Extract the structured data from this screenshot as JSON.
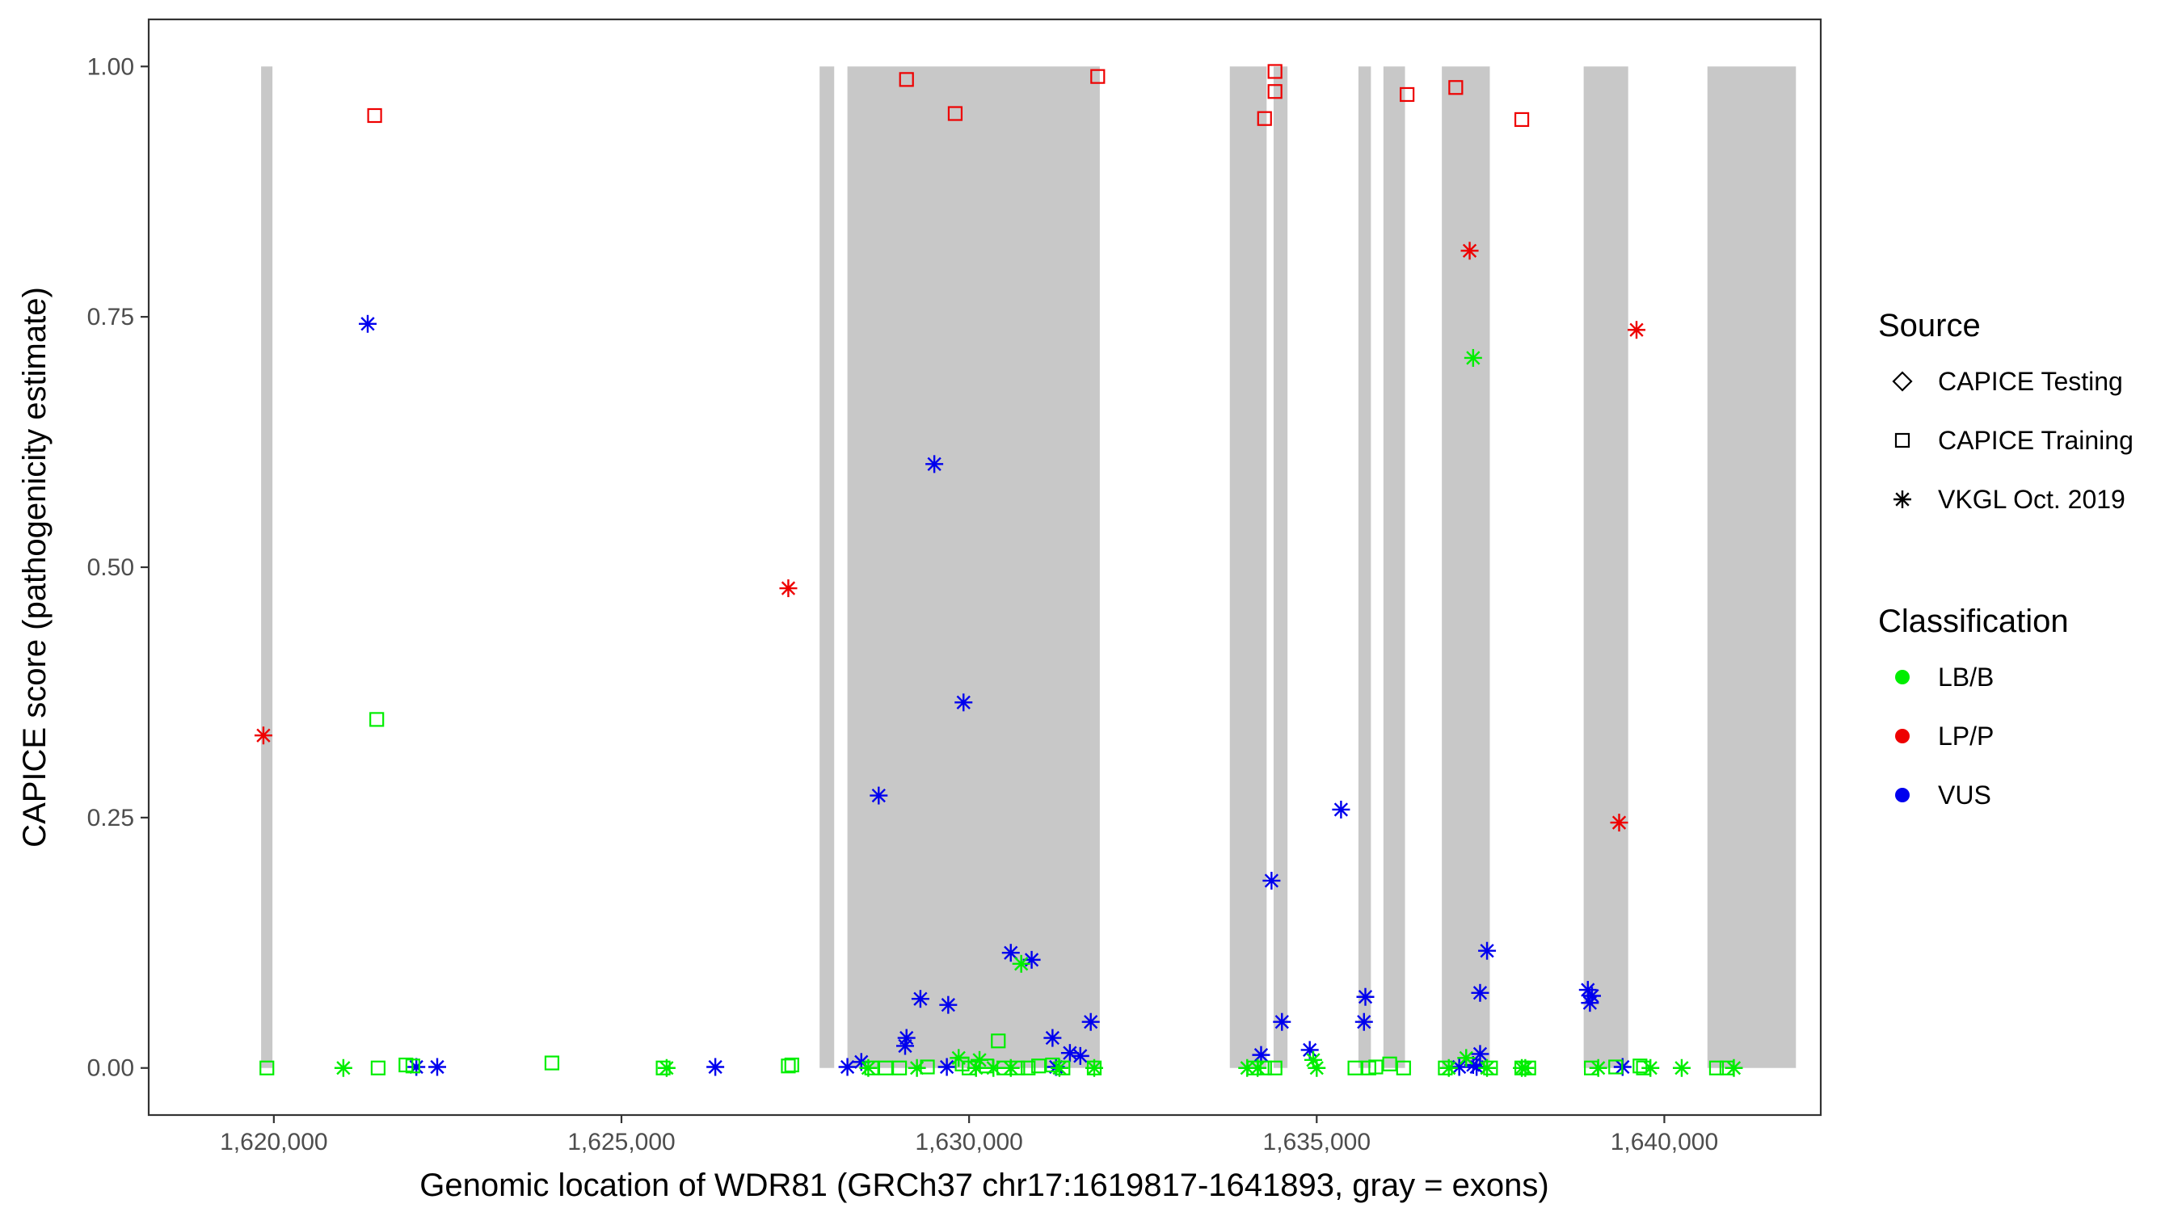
{
  "chart_data": {
    "type": "scatter",
    "xlabel": "Genomic location of WDR81 (GRCh37 chr17:1619817-1641893, gray = exons)",
    "ylabel": "CAPICE score (pathogenicity estimate)",
    "xlim": [
      1618200,
      1642250
    ],
    "ylim": [
      -0.047,
      1.047
    ],
    "x_ticks": [
      1620000,
      1625000,
      1630000,
      1635000,
      1640000
    ],
    "x_tick_labels": [
      "1,620,000",
      "1,625,000",
      "1,630,000",
      "1,635,000",
      "1,640,000"
    ],
    "y_ticks": [
      0,
      0.25,
      0.5,
      0.75,
      1.0
    ],
    "y_tick_labels": [
      "0.00",
      "0.25",
      "0.50",
      "0.75",
      "1.00"
    ],
    "grid": false,
    "exons": [
      [
        1619817,
        1619980
      ],
      [
        1627850,
        1628060
      ],
      [
        1628250,
        1631880
      ],
      [
        1633750,
        1634280
      ],
      [
        1634380,
        1634580
      ],
      [
        1635600,
        1635780
      ],
      [
        1635960,
        1636270
      ],
      [
        1636800,
        1637490
      ],
      [
        1638840,
        1639480
      ],
      [
        1640620,
        1641893
      ]
    ],
    "legend": {
      "source_title": "Source",
      "source_items": [
        {
          "label": "CAPICE Testing",
          "shape": "diamond"
        },
        {
          "label": "CAPICE Training",
          "shape": "square"
        },
        {
          "label": "VKGL Oct. 2019",
          "shape": "asterisk"
        }
      ],
      "class_title": "Classification",
      "class_items": [
        {
          "label": "LB/B",
          "color": "#00ee00"
        },
        {
          "label": "LP/P",
          "color": "#ee0000"
        },
        {
          "label": "VUS",
          "color": "#0000ee"
        }
      ],
      "placement": "right"
    },
    "series": [
      {
        "name": "LP/P",
        "source": "CAPICE Training",
        "color": "#ee0000",
        "shape": "square",
        "points": [
          [
            1621450,
            0.951
          ],
          [
            1629100,
            0.987
          ],
          [
            1629800,
            0.953
          ],
          [
            1631850,
            0.99
          ],
          [
            1634250,
            0.948
          ],
          [
            1634400,
            0.995
          ],
          [
            1634400,
            0.975
          ],
          [
            1636300,
            0.972
          ],
          [
            1637000,
            0.979
          ],
          [
            1637950,
            0.947
          ]
        ]
      },
      {
        "name": "LP/P",
        "source": "VKGL Oct. 2019",
        "color": "#ee0000",
        "shape": "asterisk",
        "points": [
          [
            1619850,
            0.332
          ],
          [
            1627400,
            0.479
          ],
          [
            1637200,
            0.816
          ],
          [
            1639600,
            0.737
          ],
          [
            1639350,
            0.245
          ]
        ]
      },
      {
        "name": "VUS",
        "source": "VKGL Oct. 2019",
        "color": "#0000ee",
        "shape": "asterisk",
        "points": [
          [
            1621350,
            0.743
          ],
          [
            1629500,
            0.603
          ],
          [
            1629920,
            0.365
          ],
          [
            1628700,
            0.272
          ],
          [
            1635350,
            0.258
          ],
          [
            1634350,
            0.187
          ],
          [
            1630600,
            0.115
          ],
          [
            1630900,
            0.108
          ],
          [
            1637450,
            0.117
          ],
          [
            1638900,
            0.078
          ],
          [
            1638960,
            0.072
          ],
          [
            1638930,
            0.065
          ],
          [
            1637350,
            0.075
          ],
          [
            1635700,
            0.071
          ],
          [
            1635680,
            0.046
          ],
          [
            1634500,
            0.046
          ],
          [
            1629300,
            0.069
          ],
          [
            1629700,
            0.063
          ],
          [
            1631750,
            0.046
          ],
          [
            1631200,
            0.03
          ],
          [
            1629100,
            0.03
          ],
          [
            1629080,
            0.022
          ],
          [
            1631450,
            0.015
          ],
          [
            1631600,
            0.012
          ],
          [
            1634900,
            0.018
          ],
          [
            1634200,
            0.013
          ],
          [
            1637350,
            0.014
          ],
          [
            1628450,
            0.006
          ],
          [
            1622050,
            0.001
          ],
          [
            1622350,
            0.001
          ],
          [
            1626350,
            0.001
          ],
          [
            1628250,
            0.001
          ],
          [
            1629680,
            0.001
          ],
          [
            1631250,
            0.001
          ],
          [
            1637050,
            0.001
          ],
          [
            1637250,
            0.003
          ],
          [
            1637300,
            0.001
          ],
          [
            1639400,
            0.001
          ]
        ]
      },
      {
        "name": "LB/B",
        "source": "CAPICE Training",
        "color": "#00ee00",
        "shape": "square",
        "points": [
          [
            1621480,
            0.348
          ],
          [
            1630420,
            0.027
          ],
          [
            1619900,
            0.0
          ],
          [
            1621500,
            0.0
          ],
          [
            1621900,
            0.003
          ],
          [
            1622000,
            0.002
          ],
          [
            1624000,
            0.005
          ],
          [
            1625600,
            0.0
          ],
          [
            1627400,
            0.002
          ],
          [
            1627450,
            0.003
          ],
          [
            1628600,
            0.0
          ],
          [
            1628800,
            0.0
          ],
          [
            1629000,
            0.0
          ],
          [
            1629400,
            0.001
          ],
          [
            1629900,
            0.004
          ],
          [
            1630000,
            0.0
          ],
          [
            1630250,
            0.002
          ],
          [
            1630500,
            0.0
          ],
          [
            1630700,
            0.0
          ],
          [
            1630850,
            0.0
          ],
          [
            1631000,
            0.002
          ],
          [
            1631200,
            0.003
          ],
          [
            1631350,
            0.0
          ],
          [
            1631800,
            0.0
          ],
          [
            1634100,
            0.0
          ],
          [
            1634250,
            0.0
          ],
          [
            1634400,
            0.0
          ],
          [
            1635550,
            0.0
          ],
          [
            1635750,
            0.0
          ],
          [
            1635850,
            0.001
          ],
          [
            1636050,
            0.004
          ],
          [
            1636250,
            0.0
          ],
          [
            1636850,
            0.0
          ],
          [
            1637500,
            0.0
          ],
          [
            1637950,
            0.0
          ],
          [
            1638050,
            0.0
          ],
          [
            1638950,
            0.0
          ],
          [
            1639300,
            0.001
          ],
          [
            1639650,
            0.002
          ],
          [
            1639700,
            0.0
          ],
          [
            1640750,
            0.0
          ],
          [
            1640900,
            0.0
          ]
        ]
      },
      {
        "name": "LB/B",
        "source": "VKGL Oct. 2019",
        "color": "#00ee00",
        "shape": "asterisk",
        "points": [
          [
            1637250,
            0.709
          ],
          [
            1630750,
            0.104
          ],
          [
            1629850,
            0.01
          ],
          [
            1630150,
            0.008
          ],
          [
            1634950,
            0.008
          ],
          [
            1637150,
            0.01
          ],
          [
            1621000,
            0.0
          ],
          [
            1625650,
            0.0
          ],
          [
            1628550,
            0.0
          ],
          [
            1629250,
            0.0
          ],
          [
            1630100,
            0.0
          ],
          [
            1630350,
            0.0
          ],
          [
            1630600,
            0.0
          ],
          [
            1631300,
            0.0
          ],
          [
            1631800,
            0.0
          ],
          [
            1634000,
            0.0
          ],
          [
            1634150,
            0.0
          ],
          [
            1635000,
            0.0
          ],
          [
            1636900,
            0.0
          ],
          [
            1637450,
            0.0
          ],
          [
            1637950,
            0.0
          ],
          [
            1638000,
            0.0
          ],
          [
            1639050,
            0.0
          ],
          [
            1639800,
            0.0
          ],
          [
            1640250,
            0.0
          ],
          [
            1641000,
            0.0
          ]
        ]
      }
    ]
  }
}
